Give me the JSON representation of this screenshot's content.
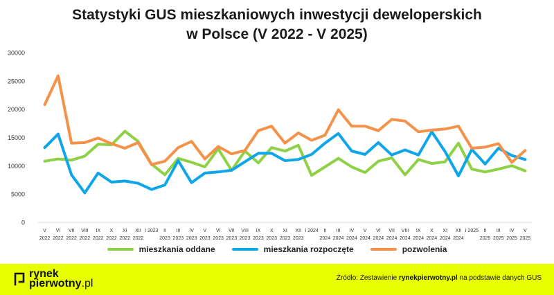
{
  "title": {
    "line1": "Statystyki GUS mieszkaniowych inwestycji deweloperskich",
    "line2": "w Polsce (V 2022 - V 2025)"
  },
  "colors": {
    "oddane": "#8ed145",
    "rozpoczete": "#0ea5e9",
    "pozwolenia": "#f5924a",
    "footer_bg": "#e8ff00"
  },
  "chart_data": {
    "type": "line",
    "title": "Statystyki GUS mieszkaniowych inwestycji deweloperskich w Polsce (V 2022 - V 2025)",
    "ylim": [
      0,
      30000
    ],
    "yticks": [
      "0",
      "5000",
      "10000",
      "15000",
      "20000",
      "25000",
      "30000"
    ],
    "categories": [
      [
        "V",
        "2022"
      ],
      [
        "VI",
        "2022"
      ],
      [
        "VII",
        "2022"
      ],
      [
        "VIII",
        "2022"
      ],
      [
        "IX",
        "2022"
      ],
      [
        "X",
        "2022"
      ],
      [
        "XI",
        "2022"
      ],
      [
        "XII",
        "2022"
      ],
      [
        "I 2023",
        ""
      ],
      [
        "II",
        "2023"
      ],
      [
        "III",
        "2023"
      ],
      [
        "IV",
        "2023"
      ],
      [
        "V",
        "2023"
      ],
      [
        "VI",
        "2023"
      ],
      [
        "VII",
        "2023"
      ],
      [
        "VIII",
        "2023"
      ],
      [
        "IX",
        "2023"
      ],
      [
        "X",
        "2023"
      ],
      [
        "XI",
        "2023"
      ],
      [
        "XII",
        "2023"
      ],
      [
        "I 2024",
        ""
      ],
      [
        "II",
        "2024"
      ],
      [
        "III",
        "2024"
      ],
      [
        "IV",
        "2024"
      ],
      [
        "V",
        "2024"
      ],
      [
        "VI",
        "2024"
      ],
      [
        "VII",
        "2024"
      ],
      [
        "VIII",
        "2024"
      ],
      [
        "IX",
        "2024"
      ],
      [
        "X",
        "2024"
      ],
      [
        "XI",
        "2024"
      ],
      [
        "XII",
        "2024"
      ],
      [
        "I 2025",
        ""
      ],
      [
        "II",
        "2025"
      ],
      [
        "III",
        "2025"
      ],
      [
        "IV",
        "2025"
      ],
      [
        "V",
        "2025"
      ]
    ],
    "series": [
      {
        "name": "mieszkania oddane",
        "color": "#8ed145",
        "values": [
          10800,
          11200,
          11000,
          11700,
          13800,
          13700,
          16100,
          14300,
          10300,
          8400,
          11300,
          10600,
          9800,
          13000,
          9200,
          12600,
          10500,
          13200,
          12600,
          13600,
          8300,
          9800,
          11300,
          9800,
          8800,
          10800,
          11400,
          8400,
          11100,
          10400,
          10700,
          14000,
          9400,
          8900,
          9400,
          10000,
          9100
        ]
      },
      {
        "name": "mieszkania rozpoczęte",
        "color": "#0ea5e9",
        "values": [
          13200,
          15600,
          8400,
          5200,
          8700,
          7100,
          7300,
          6900,
          5800,
          6600,
          10900,
          7000,
          8700,
          8900,
          9200,
          10700,
          12200,
          12200,
          10900,
          11100,
          12000,
          14000,
          15700,
          12600,
          12000,
          14100,
          11900,
          12800,
          11900,
          16000,
          12500,
          8200,
          12900,
          10300,
          13100,
          11800,
          11100
        ]
      },
      {
        "name": "pozwolenia",
        "color": "#f5924a",
        "values": [
          20800,
          25900,
          14000,
          14100,
          14900,
          13900,
          13100,
          14100,
          10200,
          10800,
          13200,
          14300,
          11200,
          13400,
          12100,
          12700,
          16200,
          17000,
          14000,
          15800,
          14500,
          15400,
          19900,
          17000,
          17000,
          16200,
          18200,
          17900,
          16000,
          16300,
          16500,
          17000,
          13100,
          13300,
          13900,
          10600,
          12700
        ]
      }
    ],
    "legend": [
      "mieszkania oddane",
      "mieszkania rozpoczęte",
      "pozwolenia"
    ]
  },
  "footer": {
    "logo_line1": "rynek",
    "logo_line2_bold": "pierwotny",
    "logo_line2_light": ".pl",
    "source_prefix": "Źródło: Zestawienie ",
    "source_bold": "rynekpierwotny.pl",
    "source_suffix": " na podstawie danych GUS"
  }
}
